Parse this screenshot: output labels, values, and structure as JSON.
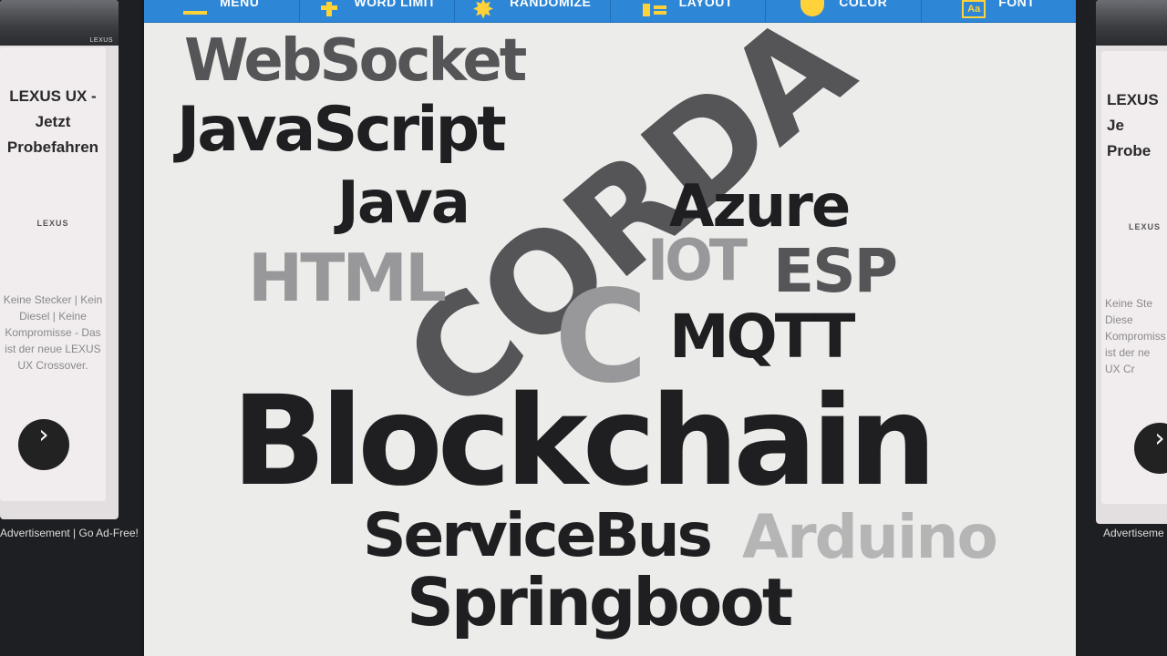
{
  "left_ad": {
    "photo_brand": "LEXUS",
    "title": "LEXUS UX -\nJetzt\nProbefahren",
    "logo": "LEXUS",
    "copy": "Keine Stecker | Kein\nDiesel | Keine\nKompromisse - Das\nist der neue LEXUS\nUX Crossover.",
    "next_icon": "›",
    "footer": "Advertisement | Go Ad-Free!"
  },
  "right_ad": {
    "title": "LEXUS\nJe\nProbe",
    "logo": "LEXUS",
    "copy": "Keine Ste\nDiese\nKompromiss\nist der ne\nUX Cr",
    "next_icon": "›",
    "footer": "Advertiseme"
  },
  "toolbar": {
    "menu": "MENU",
    "word_limit": "WORD LIMIT",
    "randomize": "RANDOMIZE",
    "layout": "LAYOUT",
    "color": "COLOR",
    "font": "FONT",
    "font_icon_text": "Aa"
  },
  "word_cloud": {
    "words": [
      "WebSocket",
      "JavaScript",
      "Java",
      "CORDA",
      "Azure",
      "HTML",
      "IOT",
      "ESP",
      "C",
      "MQTT",
      "Blockchain",
      "ServiceBus",
      "Arduino",
      "Springboot"
    ],
    "colors": {
      "dark": "#1f1f22",
      "mid_dark": "#555558",
      "mid": "#6e6e70",
      "light": "#98989a",
      "lighter": "#b5b5b6"
    }
  }
}
